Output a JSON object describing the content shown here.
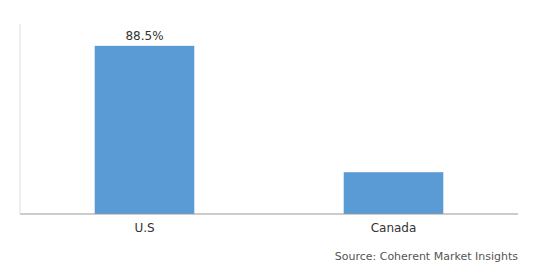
{
  "chart_data": {
    "type": "bar",
    "categories": [
      "U.S",
      "Canada"
    ],
    "values": [
      88.5,
      22.0
    ],
    "value_labels": [
      "88.5%",
      null
    ],
    "data_labels": true,
    "color": "#5B9BD5",
    "ylim": [
      0,
      100
    ],
    "tick_labels": "x",
    "grid": false,
    "source": "Source: Coherent Market Insights"
  }
}
